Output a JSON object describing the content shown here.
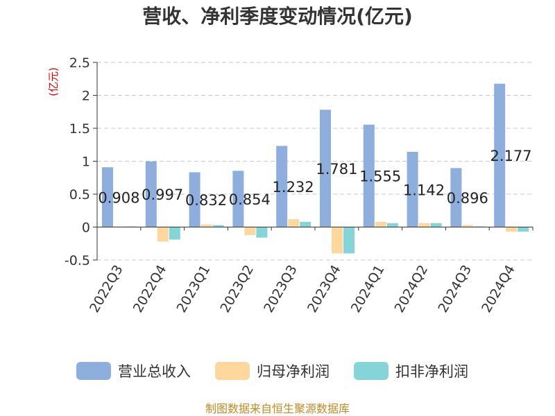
{
  "chart_data": {
    "type": "bar",
    "title": "营收、净利季度变动情况(亿元)",
    "unit_label": "(亿元)",
    "categories": [
      "2022Q3",
      "2022Q4",
      "2023Q1",
      "2023Q2",
      "2023Q3",
      "2023Q4",
      "2024Q1",
      "2024Q2",
      "2024Q3",
      "2024Q4"
    ],
    "series": [
      {
        "name": "营业总收入",
        "color": "#8eaedd",
        "values": [
          0.908,
          0.997,
          0.832,
          0.854,
          1.232,
          1.781,
          1.555,
          1.142,
          0.896,
          2.177
        ]
      },
      {
        "name": "归母净利润",
        "color": "#fdd79b",
        "values": [
          0.01,
          -0.22,
          0.04,
          -0.12,
          0.12,
          -0.4,
          0.08,
          0.06,
          0.03,
          -0.07
        ]
      },
      {
        "name": "扣非净利润",
        "color": "#84d4d8",
        "values": [
          0.01,
          -0.19,
          0.03,
          -0.16,
          0.08,
          -0.4,
          0.06,
          0.06,
          0.01,
          -0.07
        ]
      }
    ],
    "data_labels": [
      "0.908",
      "0.997",
      "0.832",
      "0.854",
      "1.232",
      "1.781",
      "1.555",
      "1.142",
      "0.896",
      "2.177"
    ],
    "yticks": [
      "2.5",
      "2",
      "1.5",
      "1",
      "0.5",
      "0",
      "-0.5"
    ],
    "ylim": [
      -0.5,
      2.5
    ],
    "grid": true,
    "legend_position": "bottom"
  },
  "source": "制图数据来自恒生聚源数据库"
}
